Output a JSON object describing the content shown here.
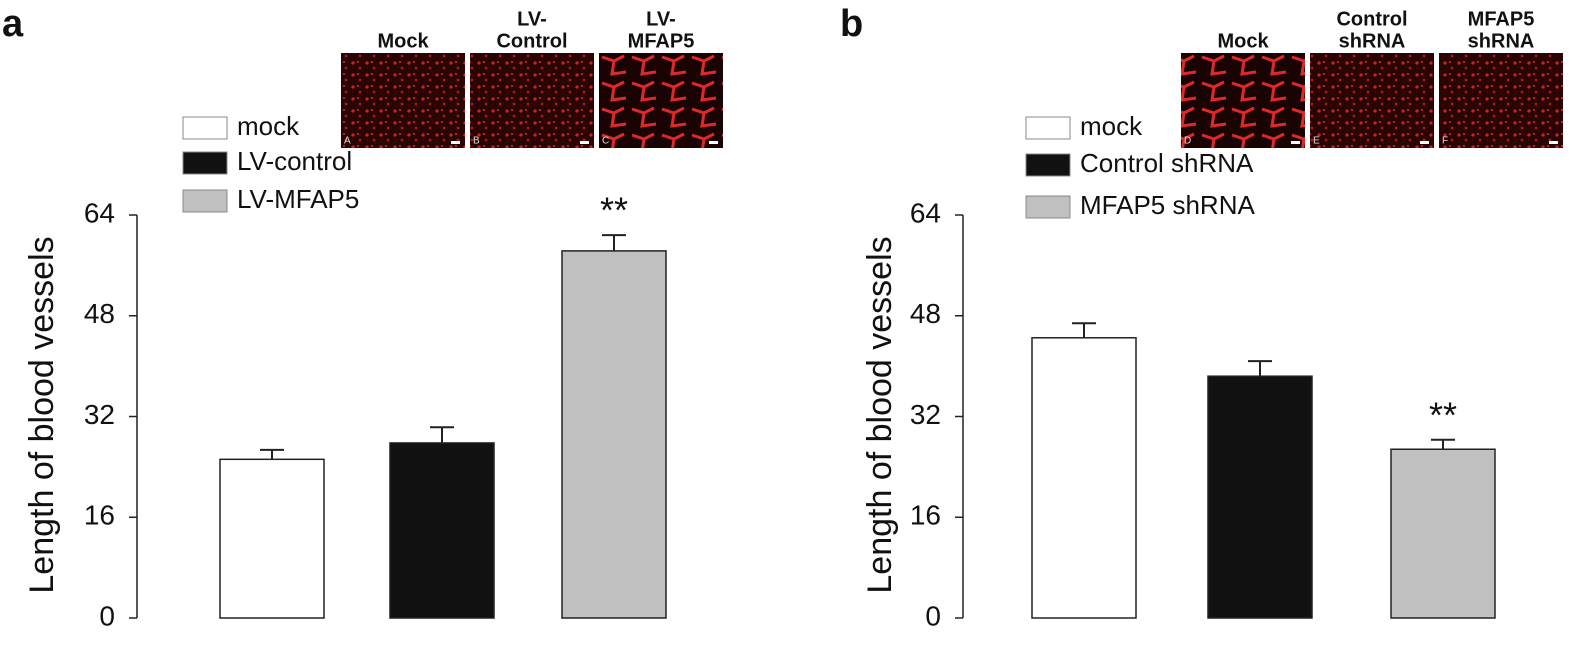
{
  "chart_data": [
    {
      "type": "bar",
      "panel_label": "a",
      "ylabel": "Length of blood vessels",
      "categories": [
        "mock",
        "LV-control",
        "LV-MFAP5"
      ],
      "values": [
        25.2,
        27.8,
        58.3
      ],
      "errors": [
        1.5,
        2.5,
        2.5
      ],
      "colors": [
        "#ffffff",
        "#111111",
        "#c0c0c0"
      ],
      "significance": [
        null,
        null,
        "**"
      ],
      "ylim": [
        0,
        64
      ],
      "yticks": [
        0,
        16,
        32,
        48,
        64
      ],
      "images": [
        {
          "title": [
            "Mock"
          ],
          "letter": "A"
        },
        {
          "title": [
            "LV-",
            "Control"
          ],
          "letter": "B"
        },
        {
          "title": [
            "LV-",
            "MFAP5"
          ],
          "letter": "C"
        }
      ]
    },
    {
      "type": "bar",
      "panel_label": "b",
      "ylabel": "Length of blood vessels",
      "categories": [
        "mock",
        "Control shRNA",
        "MFAP5 shRNA"
      ],
      "values": [
        44.5,
        38.4,
        26.8
      ],
      "errors": [
        2.3,
        2.4,
        1.5
      ],
      "colors": [
        "#ffffff",
        "#111111",
        "#c0c0c0"
      ],
      "significance": [
        null,
        null,
        "**"
      ],
      "ylim": [
        0,
        64
      ],
      "yticks": [
        0,
        16,
        32,
        48,
        64
      ],
      "images": [
        {
          "title": [
            "Mock"
          ],
          "letter": "D"
        },
        {
          "title": [
            "Control",
            "shRNA"
          ],
          "letter": "E"
        },
        {
          "title": [
            "MFAP5",
            "shRNA"
          ],
          "letter": "F"
        }
      ]
    }
  ]
}
